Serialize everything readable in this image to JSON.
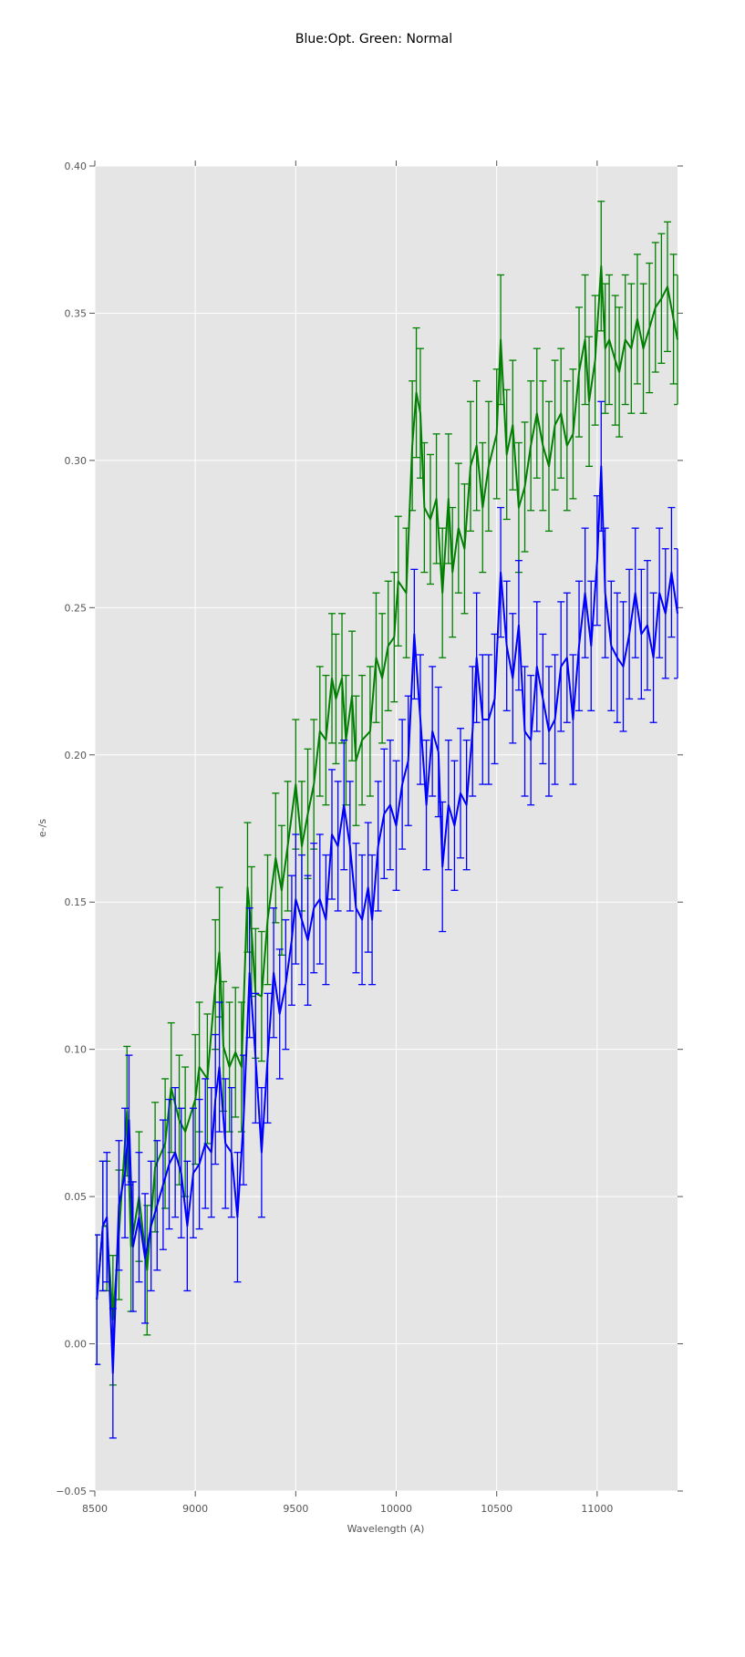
{
  "chart_data": {
    "type": "line",
    "title": "Blue:Opt. Green: Normal",
    "xlabel": "Wavelength (A)",
    "ylabel": "e-/s",
    "xlim": [
      8500,
      11400
    ],
    "ylim": [
      -0.05,
      0.4
    ],
    "xticks": [
      8500,
      9000,
      9500,
      10000,
      10500,
      11000
    ],
    "xtick_labels": [
      "8500",
      "9000",
      "9500",
      "10000",
      "10500",
      "11000"
    ],
    "yticks": [
      -0.05,
      0.0,
      0.05,
      0.1,
      0.15,
      0.2,
      0.25,
      0.3,
      0.35,
      0.4
    ],
    "ytick_labels": [
      "−0.05",
      "0.00",
      "0.05",
      "0.10",
      "0.15",
      "0.20",
      "0.25",
      "0.30",
      "0.35",
      "0.40"
    ],
    "grid": true,
    "background": "#e5e5e5",
    "series": [
      {
        "name": "Normal",
        "color": "#008000",
        "yerr": 0.022,
        "x": [
          8510,
          8540,
          8560,
          8590,
          8620,
          8660,
          8680,
          8720,
          8760,
          8800,
          8850,
          8880,
          8920,
          8950,
          9000,
          9020,
          9060,
          9100,
          9120,
          9140,
          9170,
          9200,
          9230,
          9260,
          9280,
          9300,
          9330,
          9360,
          9400,
          9430,
          9460,
          9500,
          9530,
          9560,
          9590,
          9620,
          9650,
          9680,
          9700,
          9730,
          9750,
          9780,
          9800,
          9830,
          9870,
          9900,
          9930,
          9960,
          9990,
          10010,
          10050,
          10080,
          10100,
          10120,
          10140,
          10170,
          10200,
          10230,
          10260,
          10280,
          10310,
          10340,
          10370,
          10400,
          10430,
          10460,
          10500,
          10520,
          10550,
          10580,
          10610,
          10640,
          10670,
          10700,
          10730,
          10760,
          10790,
          10820,
          10850,
          10880,
          10910,
          10940,
          10960,
          10990,
          11020,
          11040,
          11060,
          11090,
          11110,
          11140,
          11170,
          11200,
          11230,
          11260,
          11290,
          11320,
          11350,
          11380,
          11400
        ],
        "y": [
          0.015,
          0.04,
          0.04,
          0.008,
          0.037,
          0.079,
          0.033,
          0.05,
          0.025,
          0.06,
          0.068,
          0.087,
          0.076,
          0.072,
          0.083,
          0.094,
          0.09,
          0.122,
          0.133,
          0.101,
          0.094,
          0.099,
          0.094,
          0.155,
          0.14,
          0.119,
          0.118,
          0.144,
          0.165,
          0.154,
          0.169,
          0.19,
          0.169,
          0.18,
          0.19,
          0.208,
          0.205,
          0.226,
          0.219,
          0.226,
          0.205,
          0.22,
          0.198,
          0.205,
          0.208,
          0.233,
          0.226,
          0.237,
          0.24,
          0.259,
          0.255,
          0.305,
          0.323,
          0.316,
          0.284,
          0.28,
          0.287,
          0.255,
          0.287,
          0.262,
          0.277,
          0.27,
          0.298,
          0.305,
          0.284,
          0.298,
          0.309,
          0.341,
          0.302,
          0.312,
          0.284,
          0.291,
          0.305,
          0.316,
          0.305,
          0.298,
          0.312,
          0.316,
          0.305,
          0.309,
          0.33,
          0.341,
          0.32,
          0.334,
          0.366,
          0.338,
          0.341,
          0.334,
          0.33,
          0.341,
          0.338,
          0.348,
          0.338,
          0.345,
          0.352,
          0.355,
          0.359,
          0.348,
          0.341
        ]
      },
      {
        "name": "Opt.",
        "color": "#0000ff",
        "yerr": 0.022,
        "x": [
          8510,
          8540,
          8560,
          8590,
          8620,
          8650,
          8670,
          8690,
          8720,
          8750,
          8780,
          8810,
          8840,
          8870,
          8900,
          8930,
          8960,
          8990,
          9020,
          9050,
          9080,
          9100,
          9120,
          9150,
          9180,
          9210,
          9240,
          9270,
          9300,
          9330,
          9360,
          9390,
          9420,
          9450,
          9480,
          9500,
          9530,
          9560,
          9590,
          9620,
          9650,
          9680,
          9710,
          9740,
          9770,
          9800,
          9830,
          9860,
          9880,
          9910,
          9940,
          9970,
          10000,
          10030,
          10060,
          10090,
          10120,
          10150,
          10180,
          10210,
          10230,
          10260,
          10290,
          10320,
          10350,
          10380,
          10400,
          10430,
          10460,
          10490,
          10520,
          10550,
          10580,
          10610,
          10640,
          10670,
          10700,
          10730,
          10760,
          10790,
          10820,
          10850,
          10880,
          10910,
          10940,
          10970,
          11000,
          11020,
          11040,
          11070,
          11100,
          11130,
          11160,
          11190,
          11220,
          11250,
          11280,
          11310,
          11340,
          11370,
          11400
        ],
        "y": [
          0.015,
          0.04,
          0.043,
          -0.01,
          0.047,
          0.058,
          0.076,
          0.033,
          0.043,
          0.029,
          0.04,
          0.047,
          0.054,
          0.061,
          0.065,
          0.058,
          0.04,
          0.058,
          0.061,
          0.068,
          0.065,
          0.083,
          0.094,
          0.068,
          0.065,
          0.043,
          0.076,
          0.126,
          0.097,
          0.065,
          0.097,
          0.126,
          0.112,
          0.122,
          0.137,
          0.151,
          0.144,
          0.137,
          0.148,
          0.151,
          0.144,
          0.173,
          0.169,
          0.183,
          0.169,
          0.148,
          0.144,
          0.155,
          0.144,
          0.169,
          0.18,
          0.183,
          0.176,
          0.19,
          0.198,
          0.241,
          0.212,
          0.183,
          0.208,
          0.201,
          0.162,
          0.183,
          0.176,
          0.187,
          0.183,
          0.208,
          0.233,
          0.212,
          0.212,
          0.219,
          0.262,
          0.237,
          0.226,
          0.244,
          0.208,
          0.205,
          0.23,
          0.219,
          0.208,
          0.212,
          0.23,
          0.233,
          0.212,
          0.237,
          0.255,
          0.237,
          0.266,
          0.298,
          0.255,
          0.237,
          0.233,
          0.23,
          0.241,
          0.255,
          0.241,
          0.244,
          0.233,
          0.255,
          0.248,
          0.262,
          0.248
        ]
      }
    ]
  }
}
